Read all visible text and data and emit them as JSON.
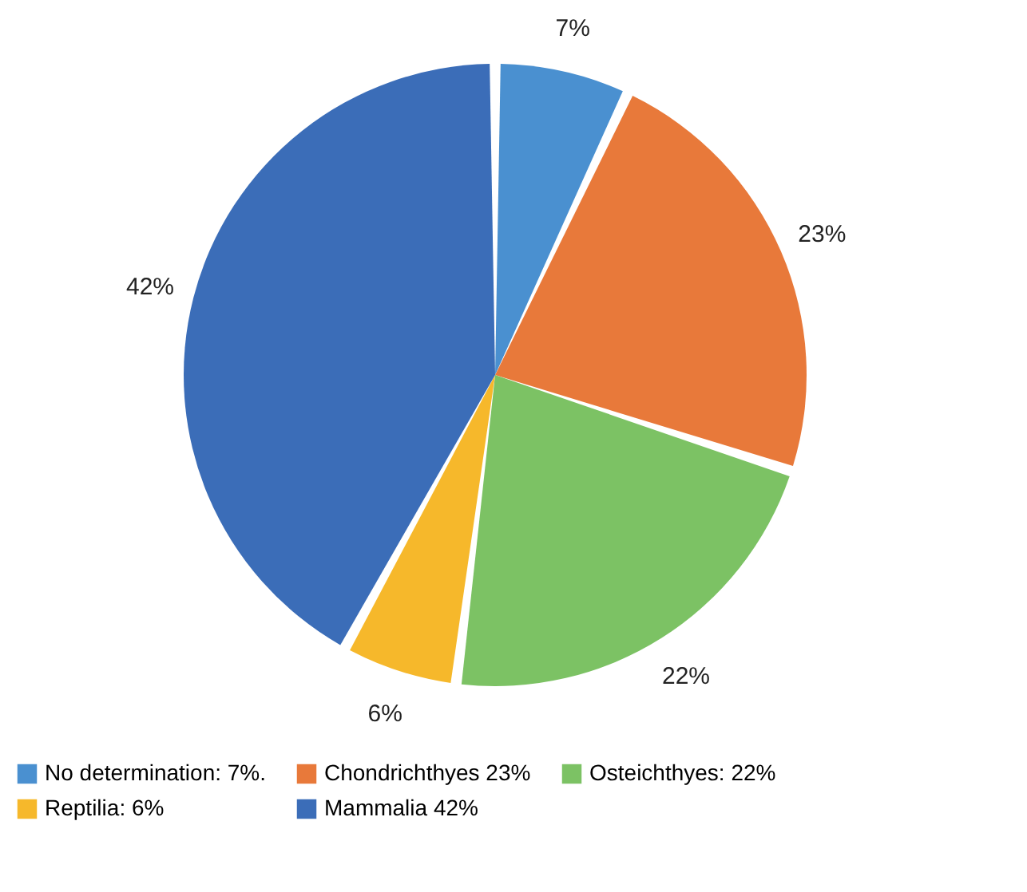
{
  "chart_data": {
    "type": "pie",
    "categories": [
      "No determination: 7%.",
      "Chondrichthyes 23%",
      "Osteichthyes: 22%",
      "Reptilia: 6%",
      "Mammalia 42%"
    ],
    "values": [
      7,
      23,
      22,
      6,
      42
    ],
    "colors": [
      "#4a90d0",
      "#e8793a",
      "#7cc264",
      "#f6b82b",
      "#3b6db8"
    ],
    "value_labels": [
      "7%",
      "23%",
      "22%",
      "6%",
      "42%"
    ],
    "legend": "bottom"
  }
}
